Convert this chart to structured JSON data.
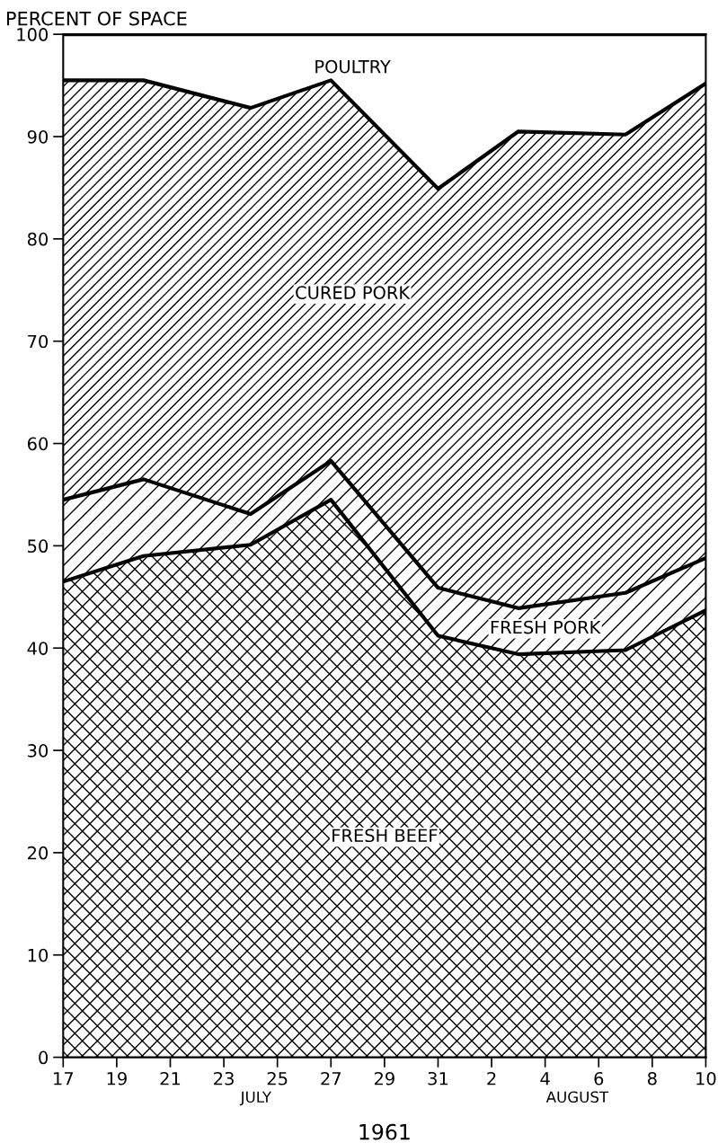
{
  "chart_data": {
    "type": "area",
    "stacked": true,
    "ylabel": "PERCENT OF SPACE",
    "xlabel": "1961",
    "x": [
      "1961-07-17",
      "1961-07-20",
      "1961-07-24",
      "1961-07-27",
      "1961-07-31",
      "1961-08-03",
      "1961-08-07",
      "1961-08-10"
    ],
    "series": [
      {
        "name": "FRESH BEEF",
        "color": "#000000",
        "values": [
          46.5,
          49.0,
          50.1,
          54.5,
          41.2,
          39.4,
          39.8,
          43.7
        ]
      },
      {
        "name": "FRESH PORK",
        "color": "#000000",
        "values": [
          8.0,
          7.5,
          3.0,
          3.8,
          4.7,
          4.5,
          5.6,
          5.1
        ]
      },
      {
        "name": "CURED PORK",
        "color": "#000000",
        "values": [
          41.0,
          39.0,
          39.7,
          37.2,
          39.0,
          46.6,
          44.8,
          46.4
        ]
      },
      {
        "name": "POULTRY",
        "color": "#000000",
        "values": [
          4.5,
          4.5,
          7.2,
          4.5,
          15.1,
          9.5,
          9.8,
          4.8
        ]
      }
    ],
    "ylim": [
      0,
      100
    ],
    "yticks": [
      0,
      10,
      20,
      30,
      40,
      50,
      60,
      70,
      80,
      90,
      100
    ],
    "xlim": [
      "1961-07-17",
      "1961-08-10"
    ],
    "xticks": [
      {
        "value": "1961-07-17",
        "label": "17"
      },
      {
        "value": "1961-07-19",
        "label": "19"
      },
      {
        "value": "1961-07-21",
        "label": "21"
      },
      {
        "value": "1961-07-23",
        "label": "23"
      },
      {
        "value": "1961-07-25",
        "label": "25"
      },
      {
        "value": "1961-07-27",
        "label": "27"
      },
      {
        "value": "1961-07-29",
        "label": "29"
      },
      {
        "value": "1961-07-31",
        "label": "31"
      },
      {
        "value": "1961-08-02",
        "label": "2"
      },
      {
        "value": "1961-08-04",
        "label": "4"
      },
      {
        "value": "1961-08-06",
        "label": "6"
      },
      {
        "value": "1961-08-08",
        "label": "8"
      },
      {
        "value": "1961-08-10",
        "label": "10"
      }
    ],
    "annotations": [
      "JULY",
      "AUGUST"
    ],
    "grid": false,
    "legend": false
  }
}
